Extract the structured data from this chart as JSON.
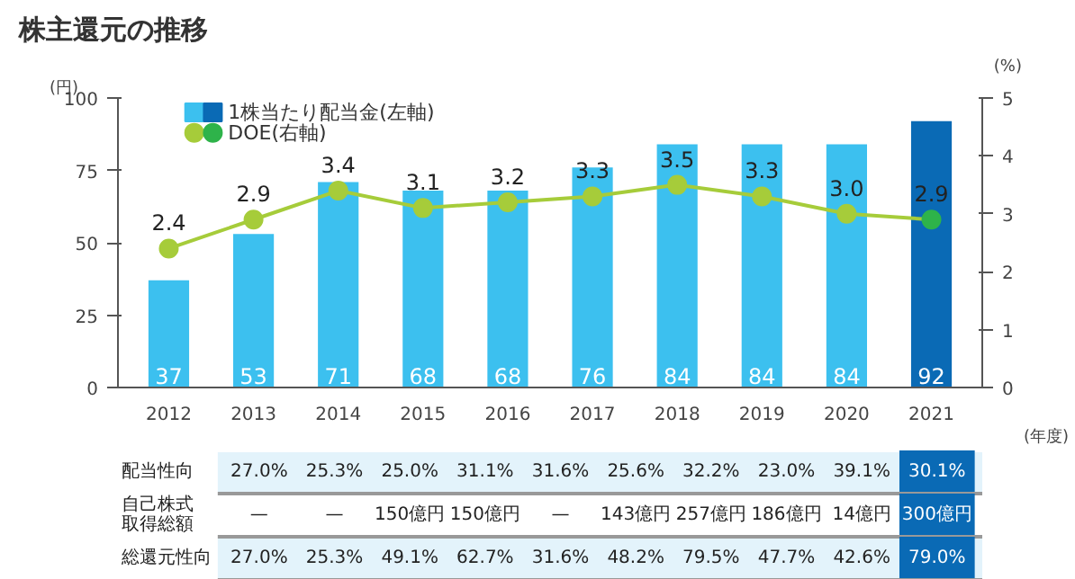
{
  "chart_data": {
    "type": "bar",
    "title": "株主還元の推移",
    "categories": [
      "2012",
      "2013",
      "2014",
      "2015",
      "2016",
      "2017",
      "2018",
      "2019",
      "2020",
      "2021"
    ],
    "xlabel": "(年度)",
    "ylabel": "(円)",
    "y2label": "(%)",
    "series": [
      {
        "name": "1株当たり配当金(左軸)",
        "color": "#3cc0ef",
        "colors": [
          "#3cc0ef",
          "#3cc0ef",
          "#3cc0ef",
          "#3cc0ef",
          "#3cc0ef",
          "#3cc0ef",
          "#3cc0ef",
          "#3cc0ef",
          "#3cc0ef",
          "#0a6ab5"
        ],
        "values": [
          37,
          53,
          71,
          68,
          68,
          76,
          84,
          84,
          84,
          92
        ]
      },
      {
        "name": "DOE(右軸)",
        "type": "line",
        "axis": "y2",
        "marker": "circle",
        "color": "#a6cc3a",
        "colors": [
          "#a6cc3a",
          "#a6cc3a",
          "#a6cc3a",
          "#a6cc3a",
          "#a6cc3a",
          "#a6cc3a",
          "#a6cc3a",
          "#a6cc3a",
          "#a6cc3a",
          "#2eb34a"
        ],
        "values": [
          2.4,
          2.9,
          3.4,
          3.1,
          3.2,
          3.3,
          3.5,
          3.3,
          3.0,
          2.9
        ],
        "value_labels": [
          "2.4",
          "2.9",
          "3.4",
          "3.1",
          "3.2",
          "3.3",
          "3.5",
          "3.3",
          "3.0",
          "2.9"
        ]
      }
    ],
    "data_labels": true,
    "ylim": [
      0,
      100
    ],
    "yticks": [
      0,
      25,
      50,
      75,
      100
    ],
    "y2lim": [
      0,
      5
    ],
    "y2ticks": [
      0,
      1,
      2,
      3,
      4,
      5
    ],
    "grid": false,
    "legend": "top left",
    "annotations": [
      "配当性向",
      "27.0%",
      "25.3%",
      "25.0%",
      "31.1%",
      "31.6%",
      "25.6%",
      "32.2%",
      "23.0%",
      "39.1%",
      "30.1%",
      "自己株式取得総額",
      "—",
      "—",
      "150億円",
      "150億円",
      "—",
      "143億円",
      "257億円",
      "186億円",
      "14億円",
      "300億円",
      "総還元性向",
      "27.0%",
      "25.3%",
      "49.1%",
      "62.7%",
      "31.6%",
      "48.2%",
      "79.5%",
      "47.7%",
      "42.6%",
      "79.0%"
    ]
  }
}
